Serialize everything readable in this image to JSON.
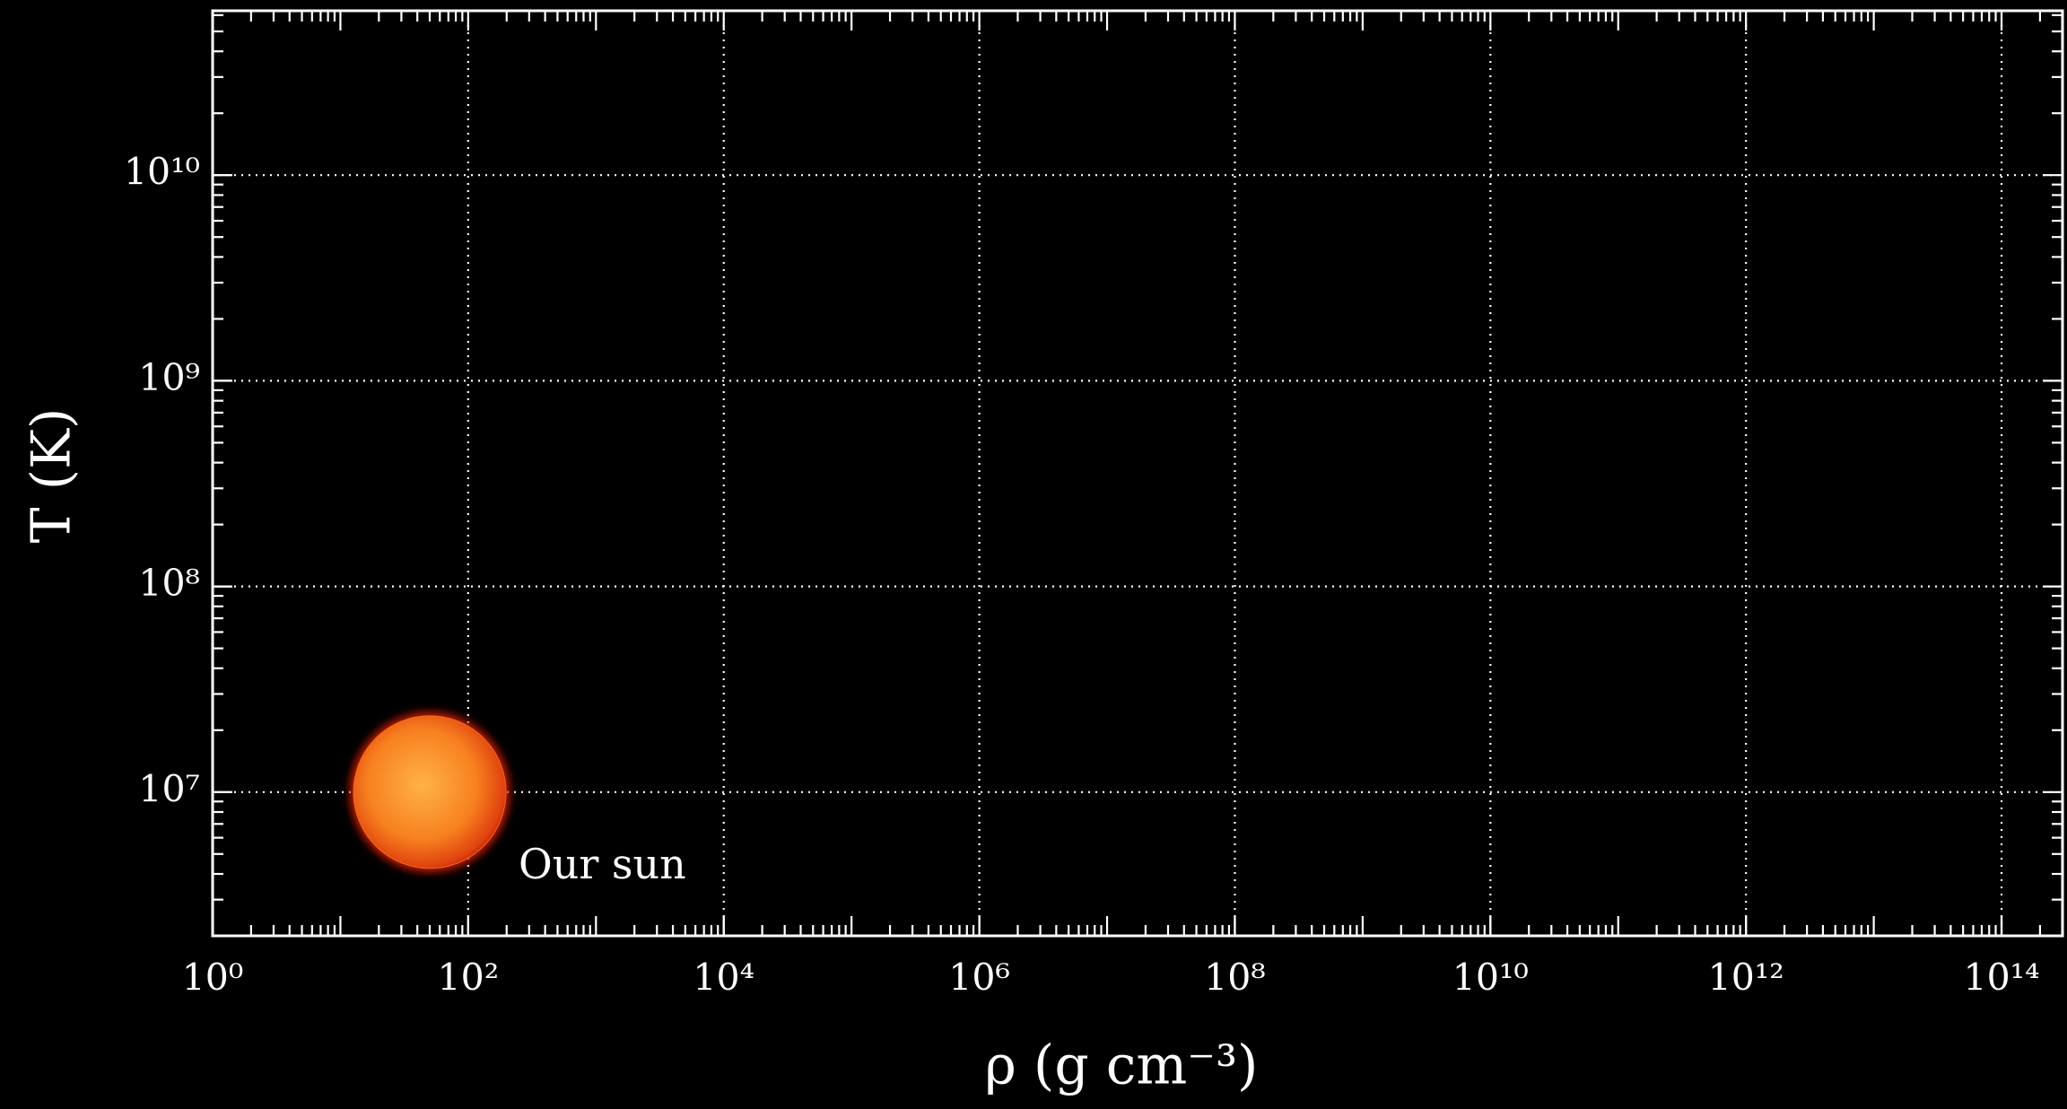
{
  "chart_data": {
    "type": "scatter",
    "x_label": "ρ (g cm⁻³)",
    "y_label": "T (K)",
    "xscale": "log",
    "yscale": "log",
    "grid": true,
    "xlim": [
      1,
      300000000000000
    ],
    "ylim": [
      2000000,
      63000000000
    ],
    "xticks": [
      {
        "value": 1,
        "label": "10⁰"
      },
      {
        "value": 100,
        "label": "10²"
      },
      {
        "value": 10000,
        "label": "10⁴"
      },
      {
        "value": 1000000,
        "label": "10⁶"
      },
      {
        "value": 100000000,
        "label": "10⁸"
      },
      {
        "value": 10000000000,
        "label": "10¹⁰"
      },
      {
        "value": 1000000000000,
        "label": "10¹²"
      },
      {
        "value": 100000000000000,
        "label": "10¹⁴"
      }
    ],
    "yticks": [
      {
        "value": 10000000,
        "label": "10⁷"
      },
      {
        "value": 100000000,
        "label": "10⁸"
      },
      {
        "value": 1000000000,
        "label": "10⁹"
      },
      {
        "value": 10000000000,
        "label": "10¹⁰"
      }
    ],
    "series": [
      {
        "name": "Our sun",
        "color": "#f26a1b",
        "x": [
          50
        ],
        "values": [
          10000000
        ]
      }
    ]
  }
}
